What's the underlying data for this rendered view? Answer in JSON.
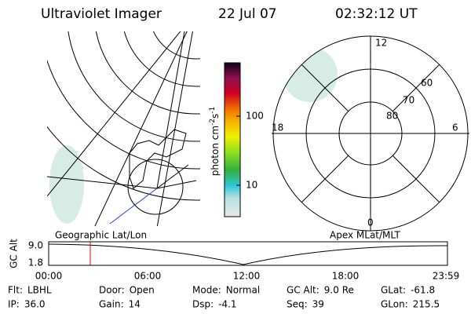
{
  "header": {
    "title": "Ultraviolet Imager",
    "date": "22 Jul 07",
    "time": "02:32:12 UT"
  },
  "colorbar": {
    "label": {
      "text": "photon cm",
      "exp1": "-2",
      "mid": "s",
      "exp2": "-1"
    },
    "ticks": [
      "100",
      "10"
    ]
  },
  "polar": {
    "mlt": [
      "12",
      "18",
      "6",
      "0"
    ],
    "mlat": [
      "60",
      "70",
      "80"
    ]
  },
  "orbit": {
    "left_label": "Geographic Lat/Lon",
    "right_label": "Apex MLat/MLT",
    "y_label": "GC Alt",
    "yticks": [
      "9.0",
      "1.8"
    ],
    "xticks": [
      "00:00",
      "06:00",
      "12:00",
      "18:00",
      "23:59"
    ]
  },
  "footer": {
    "rows": [
      [
        {
          "label": "Flt:",
          "value": "LBHL"
        },
        {
          "label": "Door:",
          "value": "Open"
        },
        {
          "label": "Mode:",
          "value": "Normal"
        },
        {
          "label": "GC Alt:",
          "value": "9.0 Re"
        },
        {
          "label": "GLat:",
          "value": "-61.8"
        }
      ],
      [
        {
          "label": "IP:",
          "value": "36.0"
        },
        {
          "label": "Gain:",
          "value": "14"
        },
        {
          "label": "Dsp:",
          "value": "-4.1"
        },
        {
          "label": "Seq:",
          "value": "39"
        },
        {
          "label": "GLon:",
          "value": "215.5"
        }
      ]
    ]
  }
}
